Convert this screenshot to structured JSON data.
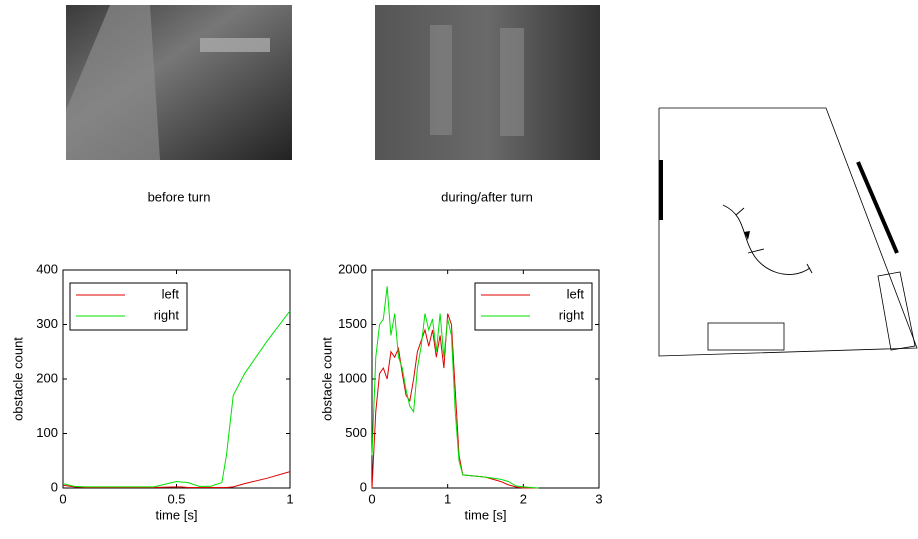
{
  "captions": [
    "before turn",
    "during/after turn"
  ],
  "chart_data": [
    {
      "type": "line",
      "xlabel": "time [s]",
      "ylabel": "obstacle count",
      "x": [
        0,
        0.05,
        0.1,
        0.2,
        0.3,
        0.4,
        0.5,
        0.52,
        0.55,
        0.6,
        0.65,
        0.7,
        0.72,
        0.75,
        0.8,
        0.9,
        1
      ],
      "series": [
        {
          "name": "left",
          "color": "#e00000",
          "values": [
            5,
            2,
            1,
            1,
            1,
            1,
            2,
            2,
            1,
            1,
            1,
            1,
            1,
            2,
            8,
            18,
            30
          ]
        },
        {
          "name": "right",
          "color": "#00e000",
          "values": [
            8,
            3,
            2,
            2,
            2,
            2,
            12,
            11,
            10,
            3,
            3,
            10,
            60,
            170,
            210,
            270,
            325
          ]
        }
      ],
      "xlim": [
        0,
        1
      ],
      "xticks": [
        0,
        0.5,
        1
      ],
      "ylim": [
        0,
        400
      ],
      "yticks": [
        0,
        100,
        200,
        300,
        400
      ],
      "legend": "upper left"
    },
    {
      "type": "line",
      "xlabel": "time [s]",
      "ylabel": "obstacle count",
      "x": [
        0,
        0.05,
        0.1,
        0.15,
        0.2,
        0.25,
        0.3,
        0.35,
        0.4,
        0.45,
        0.5,
        0.55,
        0.6,
        0.65,
        0.7,
        0.75,
        0.8,
        0.85,
        0.9,
        0.95,
        1.0,
        1.05,
        1.1,
        1.15,
        1.2,
        1.5,
        1.7,
        1.8,
        1.9,
        2.0,
        2.2
      ],
      "series": [
        {
          "name": "left",
          "color": "#e00000",
          "values": [
            0,
            700,
            1050,
            1100,
            1000,
            1250,
            1200,
            1280,
            1050,
            850,
            800,
            1000,
            1250,
            1350,
            1450,
            1300,
            1450,
            1200,
            1400,
            1100,
            1600,
            1500,
            900,
            300,
            120,
            100,
            60,
            30,
            10,
            0,
            0
          ]
        },
        {
          "name": "right",
          "color": "#00e000",
          "values": [
            300,
            1200,
            1500,
            1550,
            1850,
            1400,
            1600,
            1200,
            1100,
            900,
            750,
            700,
            1100,
            1300,
            1600,
            1450,
            1550,
            1250,
            1600,
            1200,
            1550,
            1400,
            700,
            250,
            120,
            100,
            80,
            60,
            20,
            10,
            0
          ]
        }
      ],
      "xlim": [
        0,
        3
      ],
      "xticks": [
        0,
        1,
        2,
        3
      ],
      "ylim": [
        0,
        2000
      ],
      "yticks": [
        0,
        500,
        1000,
        1500,
        2000
      ],
      "legend": "upper right"
    }
  ]
}
